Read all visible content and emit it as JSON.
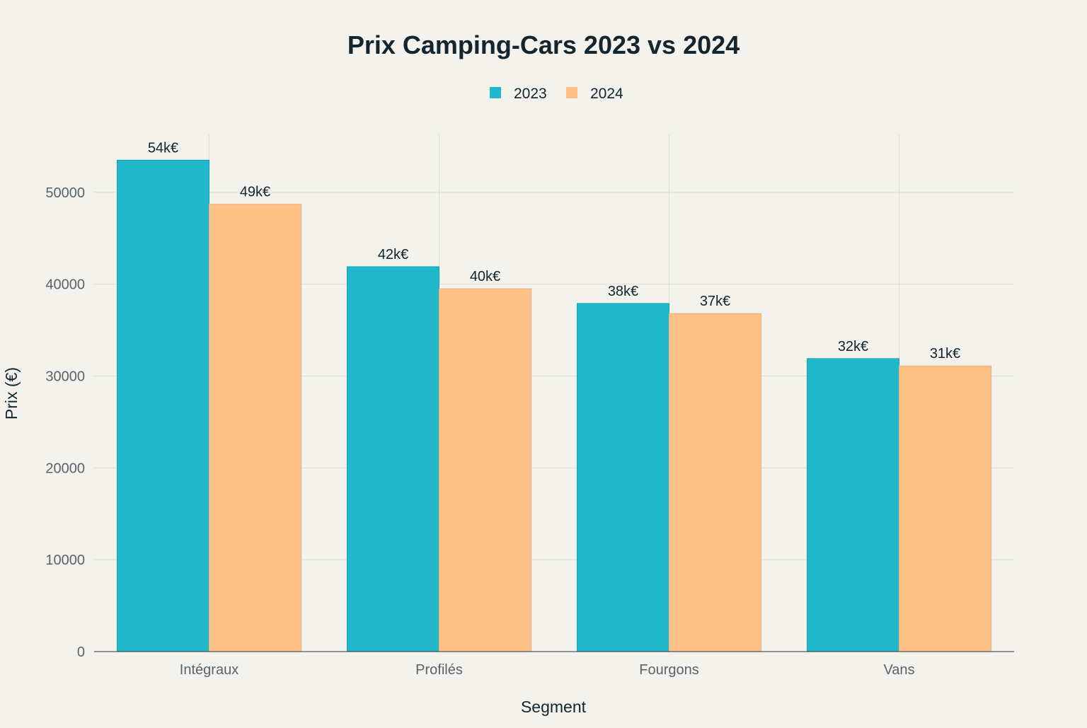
{
  "chart_data": {
    "type": "bar",
    "title": "Prix Camping-Cars 2023 vs 2024",
    "xlabel": "Segment",
    "ylabel": "Prix (€)",
    "categories": [
      "Intégraux",
      "Profilés",
      "Fourgons",
      "Vans"
    ],
    "series": [
      {
        "name": "2023",
        "color": "#21b8cc",
        "values": [
          53500,
          41900,
          37900,
          31900
        ],
        "labels": [
          "54k€",
          "42k€",
          "38k€",
          "32k€"
        ]
      },
      {
        "name": "2024",
        "color": "#ffc087",
        "values": [
          48700,
          39500,
          36800,
          31100
        ],
        "labels": [
          "49k€",
          "40k€",
          "37k€",
          "31k€"
        ]
      }
    ],
    "ylim": [
      0,
      56300
    ],
    "yticks": [
      0,
      10000,
      20000,
      30000,
      40000,
      50000
    ],
    "grid": true,
    "legend": "top-center"
  }
}
